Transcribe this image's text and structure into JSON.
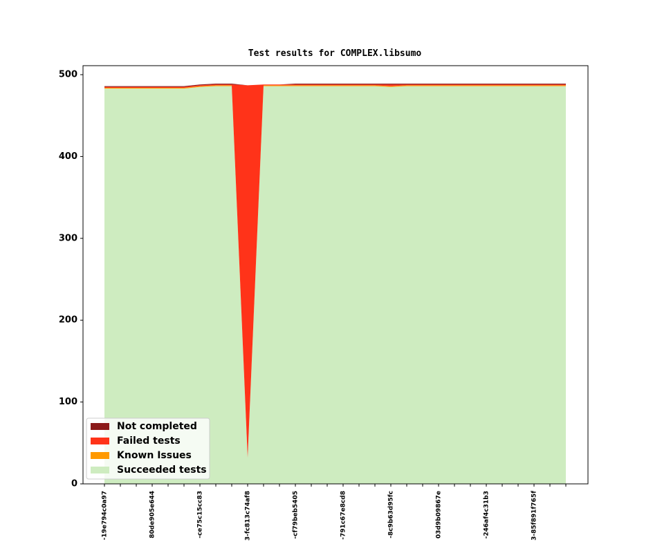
{
  "chart_data": {
    "type": "stacked-area",
    "title": "Test results for COMPLEX.libsumo",
    "categories": [
      "-19e794c0a97",
      null,
      null,
      "80de905e644",
      null,
      null,
      "-ce75c15cc83",
      null,
      null,
      "3-fc813c74af8",
      null,
      null,
      "-cf79beb5405",
      null,
      null,
      "-791c67e8cd8",
      null,
      null,
      "-8c9b63d95fc",
      null,
      null,
      "03d9b09867e",
      null,
      null,
      "-246af4c31b3",
      null,
      null,
      "3-85f891f765f",
      null,
      null
    ],
    "series": [
      {
        "name": "Not completed",
        "color": "#8b1a1a",
        "values": [
          1,
          1,
          1,
          1,
          1,
          1,
          1,
          1,
          1,
          0,
          0,
          0,
          1,
          1,
          1,
          1,
          1,
          1,
          1,
          1,
          1,
          1,
          1,
          1,
          1,
          1,
          1,
          1,
          1,
          1
        ]
      },
      {
        "name": "Failed tests",
        "color": "#ff3319",
        "values": [
          1,
          1,
          1,
          1,
          1,
          1,
          1,
          1,
          1,
          455,
          1,
          1,
          1,
          1,
          1,
          1,
          1,
          1,
          2,
          1,
          1,
          1,
          1,
          1,
          1,
          1,
          1,
          1,
          1,
          1
        ]
      },
      {
        "name": "Known Issues",
        "color": "#ff9900",
        "values": [
          1,
          1,
          1,
          1,
          1,
          1,
          1,
          1,
          1,
          0,
          1,
          1,
          1,
          1,
          1,
          1,
          1,
          1,
          1,
          1,
          1,
          1,
          1,
          1,
          1,
          1,
          1,
          1,
          1,
          1
        ]
      },
      {
        "name": "Succeeded tests",
        "color": "#ceecc0",
        "values": [
          483,
          483,
          483,
          483,
          483,
          483,
          485,
          486,
          486,
          32,
          486,
          486,
          486,
          486,
          486,
          486,
          486,
          486,
          485,
          486,
          486,
          486,
          486,
          486,
          486,
          486,
          486,
          486,
          486,
          486
        ]
      }
    ],
    "ylim": [
      0,
      511
    ],
    "yticks": [
      0,
      100,
      200,
      300,
      400,
      500
    ],
    "legend": "lower left"
  }
}
